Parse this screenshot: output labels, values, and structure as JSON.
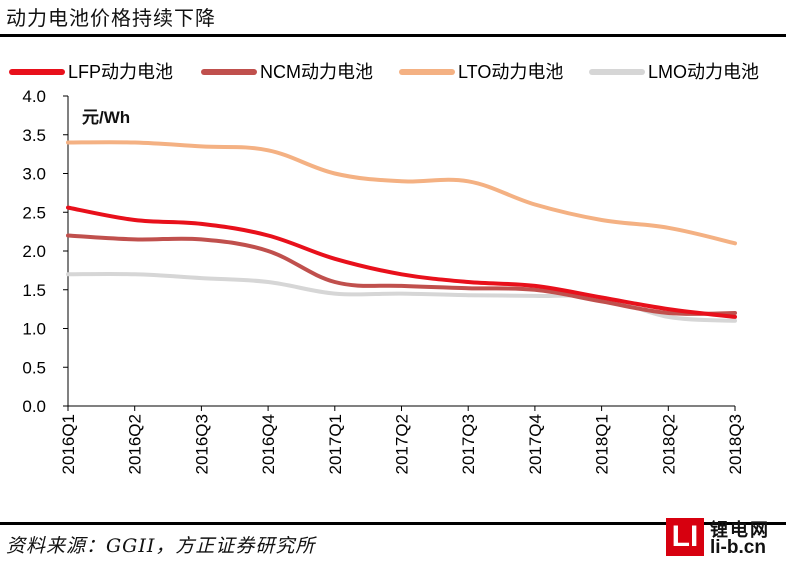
{
  "header": {
    "title": "动力电池价格持续下降"
  },
  "footer": {
    "source": "资料来源：GGII，方正证券研究所"
  },
  "logo": {
    "box_text": "LI",
    "name": "锂电网",
    "url": "li-b.cn"
  },
  "colors": {
    "LFP": "#e8101b",
    "NCM": "#c0504d",
    "LTO": "#f4b183",
    "LMO": "#d6d6d6"
  },
  "chart_data": {
    "type": "line",
    "title": "",
    "unit_label": "元/Wh",
    "xlabel": "",
    "ylabel": "元/Wh",
    "categories": [
      "2016Q1",
      "2016Q2",
      "2016Q3",
      "2016Q4",
      "2017Q1",
      "2017Q2",
      "2017Q3",
      "2017Q4",
      "2018Q1",
      "2018Q2",
      "2018Q3"
    ],
    "ylim": [
      0,
      4.0
    ],
    "yticks": [
      "0.0",
      "0.5",
      "1.0",
      "1.5",
      "2.0",
      "2.5",
      "3.0",
      "3.5",
      "4.0"
    ],
    "legend_position": "top",
    "series": [
      {
        "name": "LFP动力电池",
        "key": "LFP",
        "values": [
          2.56,
          2.4,
          2.35,
          2.2,
          1.9,
          1.7,
          1.6,
          1.55,
          1.4,
          1.25,
          1.15
        ]
      },
      {
        "name": "NCM动力电池",
        "key": "NCM",
        "values": [
          2.2,
          2.15,
          2.15,
          2.0,
          1.6,
          1.55,
          1.52,
          1.5,
          1.35,
          1.2,
          1.2
        ]
      },
      {
        "name": "LTO动力电池",
        "key": "LTO",
        "values": [
          3.4,
          3.4,
          3.35,
          3.3,
          3.0,
          2.9,
          2.9,
          2.6,
          2.4,
          2.3,
          2.1
        ]
      },
      {
        "name": "LMO动力电池",
        "key": "LMO",
        "values": [
          1.7,
          1.7,
          1.65,
          1.6,
          1.45,
          1.45,
          1.43,
          1.42,
          1.4,
          1.15,
          1.1
        ]
      }
    ]
  }
}
